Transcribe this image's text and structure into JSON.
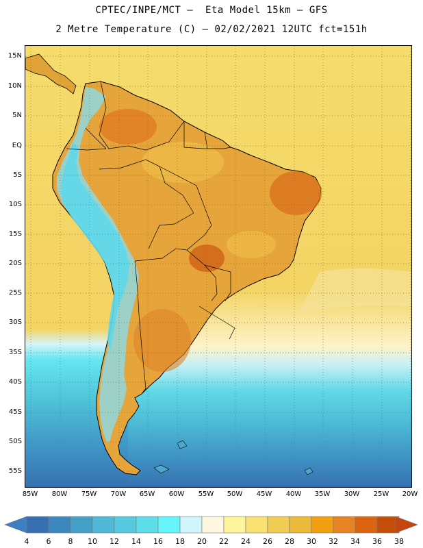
{
  "header": {
    "line1": "CPTEC/INPE/MCT –  Eta Model 15km – GFS",
    "line2": "2 Metre Temperature (C) – 02/02/2021 12UTC fct=151h"
  },
  "map": {
    "lat_labels": [
      "15N",
      "10N",
      "5N",
      "EQ",
      "5S",
      "10S",
      "15S",
      "20S",
      "25S",
      "30S",
      "35S",
      "40S",
      "45S",
      "50S",
      "55S"
    ],
    "lon_labels": [
      "85W",
      "80W",
      "75W",
      "70W",
      "65W",
      "60W",
      "55W",
      "50W",
      "45W",
      "40W",
      "35W",
      "30W",
      "25W",
      "20W"
    ],
    "ocean_color": "#f2d65e",
    "land_color": "#e6a53a",
    "border_color": "#000000"
  },
  "colorbar": {
    "labels": [
      "4",
      "6",
      "8",
      "10",
      "12",
      "14",
      "16",
      "18",
      "20",
      "22",
      "24",
      "26",
      "28",
      "30",
      "32",
      "34",
      "36",
      "38"
    ],
    "colors": [
      "#3670b0",
      "#3d87bd",
      "#45a0c8",
      "#4fb8d6",
      "#56c9de",
      "#5cdde8",
      "#66f5f8",
      "#d0f5fb",
      "#fff8e0",
      "#fdf49c",
      "#f8e071",
      "#f0cc55",
      "#ecba3a",
      "#f2a012",
      "#e68424",
      "#da6410",
      "#c44d0a"
    ],
    "low_color": "#3e7fc4",
    "high_color": "#c2460e"
  }
}
